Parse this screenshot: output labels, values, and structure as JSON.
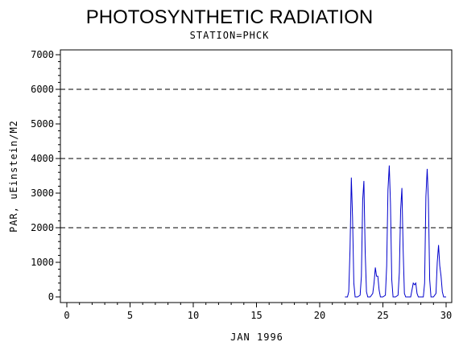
{
  "chart_data": {
    "type": "line",
    "title": "PHOTOSYNTHETIC RADIATION",
    "subtitle": "STATION=PHCK",
    "xlabel": "JAN 1996",
    "ylabel": "PAR, uEinstein/M2",
    "xlim": [
      0,
      30.2
    ],
    "ylim": [
      0,
      7000
    ],
    "x_ticks": [
      0,
      5,
      10,
      15,
      20,
      25,
      30
    ],
    "x_tick_labels": [
      "0",
      "5",
      "10",
      "15",
      "20",
      "25",
      "30"
    ],
    "y_ticks": [
      0,
      1000,
      2000,
      3000,
      4000,
      5000,
      6000,
      7000
    ],
    "y_tick_labels": [
      "0",
      "1000",
      "2000",
      "3000",
      "4000",
      "5000",
      "6000",
      "7000"
    ],
    "reference_lines_y": [
      2000,
      4000,
      6000
    ],
    "line_color": "#0000cc",
    "series": [
      {
        "x": [
          22.0,
          22.2,
          22.3,
          22.4,
          22.5,
          22.6,
          22.7,
          22.8,
          23.0,
          23.2,
          23.3,
          23.4,
          23.5,
          23.6,
          23.7,
          23.8,
          24.0,
          24.2,
          24.3,
          24.4,
          24.5,
          24.6,
          24.7,
          24.8,
          25.0,
          25.2,
          25.3,
          25.4,
          25.5,
          25.6,
          25.7,
          25.8,
          26.0,
          26.2,
          26.3,
          26.4,
          26.5,
          26.6,
          26.7,
          26.8,
          27.0,
          27.2,
          27.3,
          27.4,
          27.5,
          27.6,
          27.7,
          27.8,
          28.0,
          28.2,
          28.3,
          28.4,
          28.5,
          28.6,
          28.7,
          28.8,
          29.0,
          29.2,
          29.3,
          29.4,
          29.5,
          29.6,
          29.7,
          29.8,
          30.0
        ],
        "y": [
          0,
          0,
          150,
          1400,
          3450,
          2300,
          400,
          0,
          0,
          50,
          600,
          2800,
          3350,
          1300,
          150,
          0,
          0,
          100,
          400,
          850,
          600,
          600,
          200,
          0,
          0,
          50,
          900,
          3100,
          3800,
          2700,
          500,
          0,
          0,
          50,
          700,
          2500,
          3150,
          1400,
          100,
          0,
          0,
          0,
          200,
          400,
          350,
          400,
          100,
          0,
          0,
          0,
          400,
          2900,
          3700,
          2800,
          500,
          0,
          0,
          100,
          1000,
          1500,
          900,
          600,
          150,
          0,
          0
        ]
      }
    ],
    "grid": false,
    "legend": "none"
  }
}
